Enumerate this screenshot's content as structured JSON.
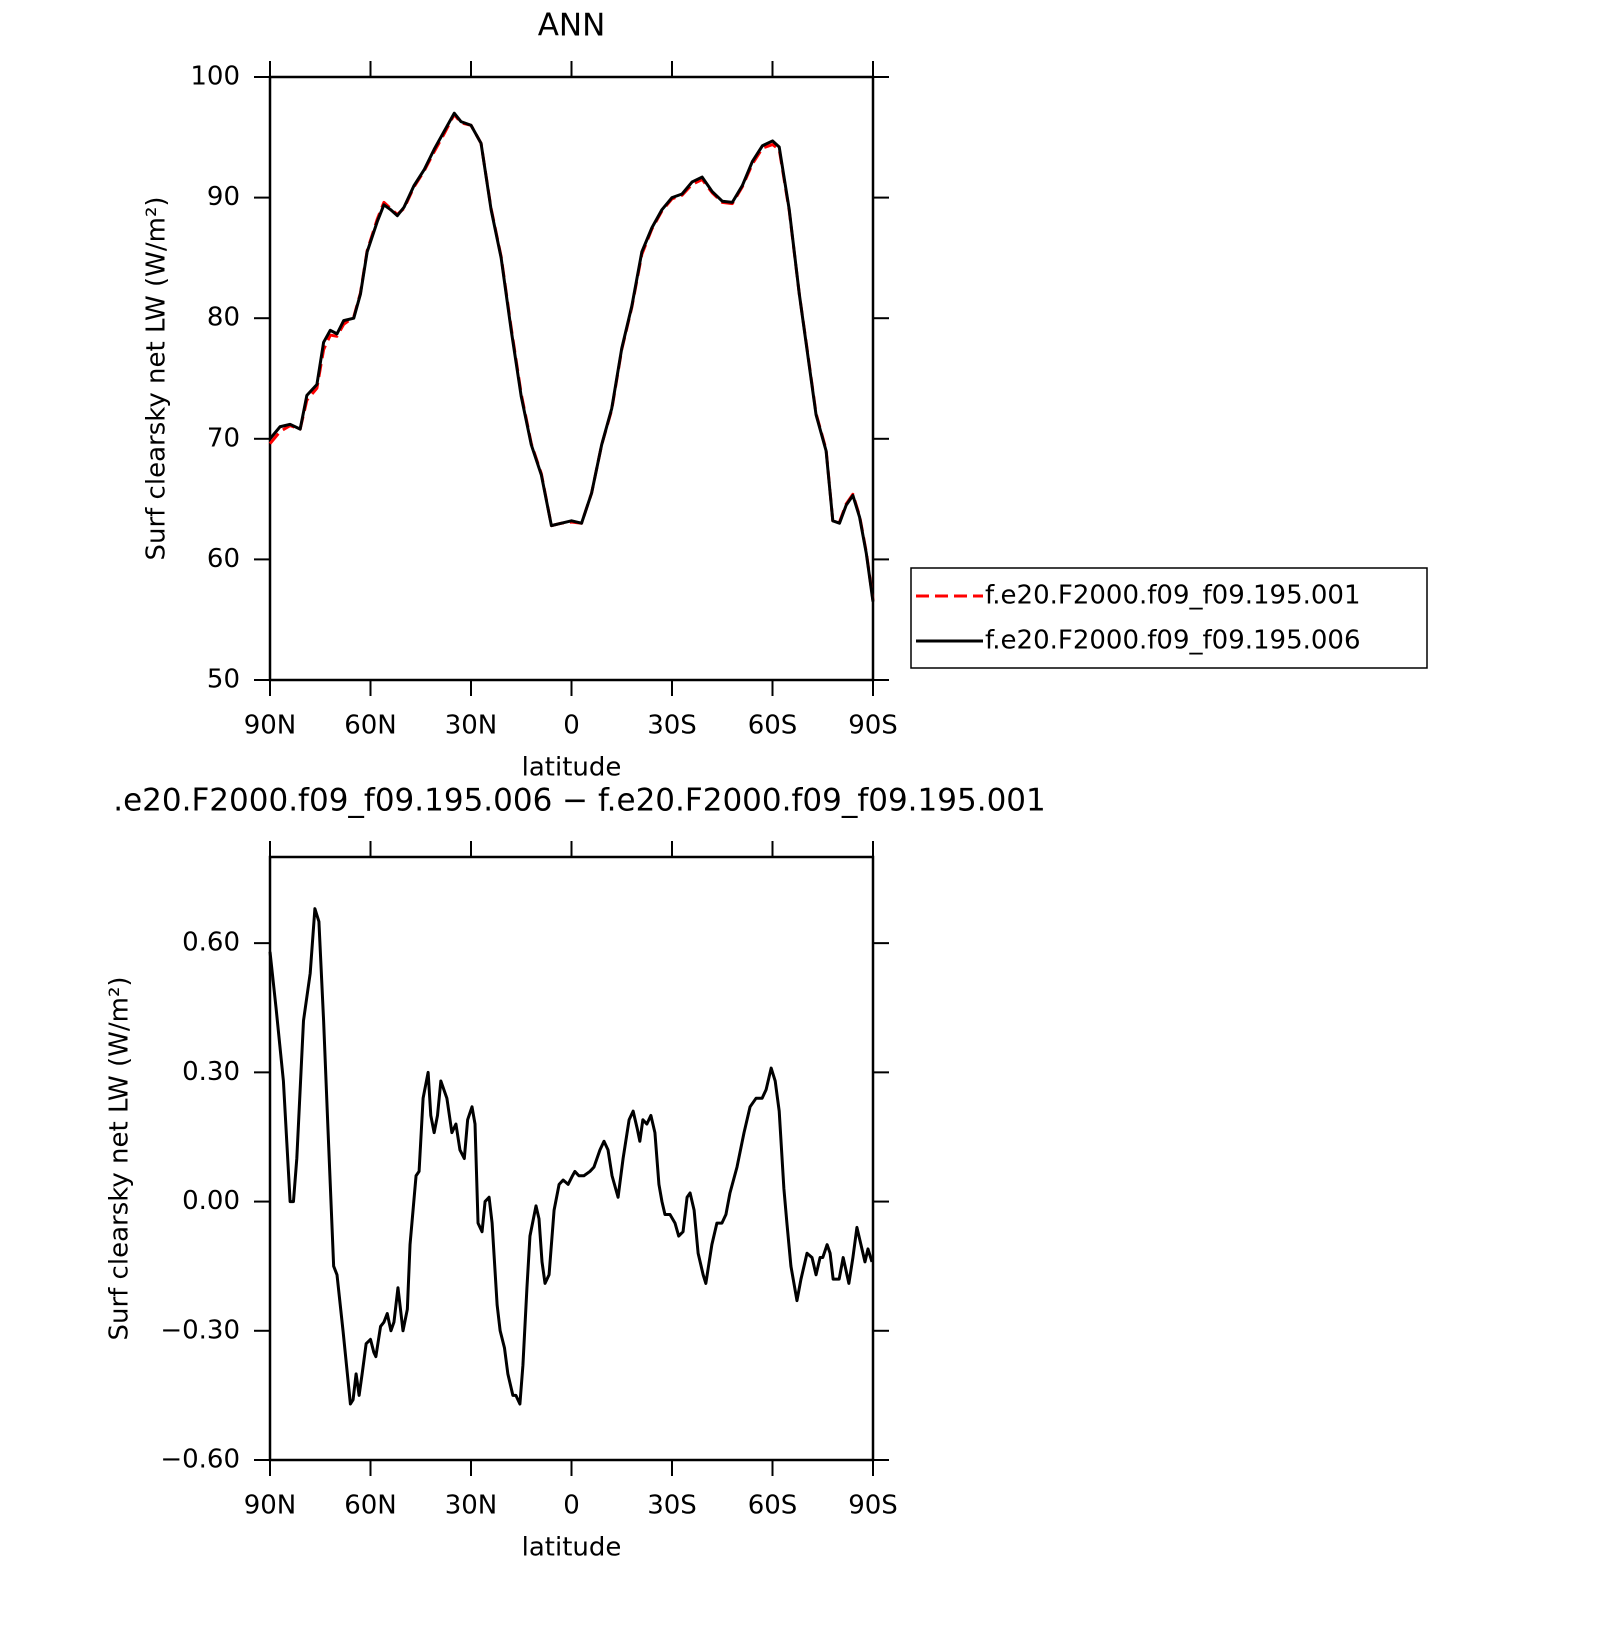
{
  "chart_data": [
    {
      "type": "line",
      "title": "ANN",
      "xlabel": "latitude",
      "ylabel": "Surf clearsky net LW (W/m²)",
      "xlim": [
        90,
        -90
      ],
      "xticks": [
        {
          "value": 90,
          "label": "90N"
        },
        {
          "value": 60,
          "label": "60N"
        },
        {
          "value": 30,
          "label": "30N"
        },
        0,
        {
          "value": -30,
          "label": "30S"
        },
        {
          "value": -60,
          "label": "60S"
        },
        {
          "value": -90,
          "label": "90S"
        }
      ],
      "ylim": [
        50,
        100
      ],
      "yticks": [
        50,
        60,
        70,
        80,
        90,
        100
      ],
      "legend": "right",
      "x": [
        90,
        87,
        84,
        81,
        79,
        76,
        74,
        72,
        70,
        68,
        65,
        63,
        61,
        58,
        56,
        54,
        52,
        50,
        47,
        44,
        41,
        38,
        35,
        33,
        30,
        27,
        24,
        21,
        18,
        15,
        12,
        9,
        6,
        3,
        0,
        -3,
        -6,
        -9,
        -12,
        -15,
        -18,
        -21,
        -24,
        -27,
        -30,
        -33,
        -36,
        -39,
        -42,
        -45,
        -48,
        -51,
        -54,
        -57,
        -60,
        -62,
        -65,
        -68,
        -70,
        -73,
        -76,
        -78,
        -80,
        -82,
        -84,
        -86,
        -88,
        -90
      ],
      "series": [
        {
          "name": "f.e20.F2000.f09_f09.195.001",
          "color": "#ff0000",
          "linestyle": "dashed",
          "values": [
            69.6,
            70.6,
            71.1,
            70.8,
            73.2,
            74.2,
            77.4,
            78.6,
            78.5,
            79.5,
            80.1,
            82.1,
            85.6,
            88.2,
            89.6,
            89.1,
            88.6,
            89.1,
            90.9,
            92.2,
            93.8,
            95.3,
            96.9,
            96.2,
            96,
            94.5,
            89.1,
            85.1,
            79.2,
            73.7,
            69.6,
            67.1,
            62.8,
            63,
            63.1,
            63,
            65.5,
            69.5,
            72.4,
            77.4,
            80.9,
            85.3,
            87.4,
            88.9,
            89.9,
            90.2,
            91.1,
            91.5,
            90.4,
            89.6,
            89.5,
            90.9,
            92.8,
            94.1,
            94.4,
            94,
            88.9,
            82,
            78.1,
            72.1,
            69.1,
            63.2,
            63.1,
            64.6,
            65.4,
            63.6,
            60.6,
            56.6
          ]
        },
        {
          "name": "f.e20.F2000.f09_f09.195.006",
          "color": "#000000",
          "linestyle": "solid",
          "values": [
            70,
            71,
            71.2,
            70.8,
            73.6,
            74.5,
            78,
            79,
            78.7,
            79.8,
            80,
            82,
            85.5,
            88,
            89.4,
            89,
            88.5,
            89.2,
            91,
            92.3,
            94,
            95.5,
            97,
            96.3,
            96,
            94.5,
            89,
            85,
            79,
            73.5,
            69.5,
            67,
            62.8,
            63,
            63.2,
            63,
            65.5,
            69.5,
            72.5,
            77.5,
            81,
            85.5,
            87.5,
            89,
            90,
            90.3,
            91.3,
            91.7,
            90.5,
            89.7,
            89.6,
            91,
            93,
            94.3,
            94.7,
            94.2,
            89,
            82,
            78,
            72,
            69,
            63.2,
            63,
            64.5,
            65.3,
            63.5,
            60.5,
            56.5
          ]
        }
      ]
    },
    {
      "type": "line",
      "title": ".e20.F2000.f09_f09.195.006 − f.e20.F2000.f09_f09.195.001",
      "xlabel": "latitude",
      "ylabel": "Surf clearsky net LW (W/m²)",
      "xlim": [
        90,
        -90
      ],
      "xticks": [
        {
          "value": 90,
          "label": "90N"
        },
        {
          "value": 60,
          "label": "60N"
        },
        {
          "value": 30,
          "label": "30N"
        },
        0,
        {
          "value": -30,
          "label": "30S"
        },
        {
          "value": -60,
          "label": "60S"
        },
        {
          "value": -90,
          "label": "90S"
        }
      ],
      "ylim": [
        -0.6,
        0.8
      ],
      "yticks": [
        {
          "value": -0.6,
          "label": "−0.60"
        },
        {
          "value": -0.3,
          "label": "−0.30"
        },
        {
          "value": 0,
          "label": "0.00"
        },
        {
          "value": 0.3,
          "label": "0.30"
        },
        {
          "value": 0.6,
          "label": "0.60"
        }
      ],
      "color": "#000000",
      "x": [
        90,
        88.2,
        86,
        84,
        83,
        82,
        80,
        78,
        76.6,
        75.4,
        74,
        72.7,
        71,
        70,
        68.2,
        66,
        65.2,
        64.3,
        63.4,
        62.5,
        61.3,
        60,
        59,
        58.4,
        57,
        56,
        55,
        53.9,
        53,
        51.8,
        50.3,
        49,
        48.2,
        47.3,
        46.4,
        45.5,
        44.3,
        42.8,
        42,
        41,
        40,
        39,
        37.2,
        35.7,
        34.5,
        33.3,
        32,
        31,
        29.7,
        28.8,
        27.9,
        26.7,
        25.8,
        24.6,
        23.7,
        22.2,
        21.3,
        20,
        19,
        17.5,
        16.6,
        15.4,
        14.5,
        13.3,
        12.4,
        10.6,
        9.7,
        8.8,
        7.9,
        6.7,
        5.2,
        3.7,
        2.5,
        1,
        -0.3,
        -1,
        -2.2,
        -3.7,
        -5.5,
        -6.7,
        -8.5,
        -9.7,
        -10.9,
        -12.1,
        -13.9,
        -15.4,
        -17.2,
        -18.4,
        -19.6,
        -20.4,
        -21.3,
        -22.5,
        -23.7,
        -24.9,
        -26.1,
        -27,
        -27.9,
        -29.4,
        -30.9,
        -32,
        -33.3,
        -34.5,
        -35.4,
        -36.6,
        -37.8,
        -39.3,
        -40.1,
        -41.9,
        -43.4,
        -44.9,
        -46.1,
        -47.3,
        -49.4,
        -51.5,
        -53.3,
        -55.1,
        -56.9,
        -58.1,
        -59.6,
        -60.8,
        -62,
        -63.4,
        -64.3,
        -65.5,
        -67.3,
        -68.5,
        -70.3,
        -71.8,
        -73,
        -74.2,
        -75,
        -76.3,
        -77.2,
        -78.1,
        -79.9,
        -81.1,
        -82.8,
        -84,
        -85.2,
        -86.4,
        -87.6,
        -88.5,
        -89.7
      ],
      "values": [
        0.58,
        0.45,
        0.28,
        0,
        0,
        0.1,
        0.42,
        0.53,
        0.68,
        0.65,
        0.42,
        0.17,
        -0.15,
        -0.17,
        -0.3,
        -0.47,
        -0.46,
        -0.4,
        -0.45,
        -0.4,
        -0.33,
        -0.32,
        -0.35,
        -0.36,
        -0.29,
        -0.28,
        -0.26,
        -0.3,
        -0.28,
        -0.2,
        -0.3,
        -0.25,
        -0.1,
        -0.02,
        0.06,
        0.07,
        0.24,
        0.3,
        0.2,
        0.16,
        0.2,
        0.28,
        0.24,
        0.16,
        0.18,
        0.12,
        0.1,
        0.19,
        0.22,
        0.18,
        -0.05,
        -0.07,
        0,
        0.01,
        -0.05,
        -0.24,
        -0.3,
        -0.34,
        -0.4,
        -0.45,
        -0.45,
        -0.47,
        -0.38,
        -0.2,
        -0.08,
        -0.01,
        -0.04,
        -0.14,
        -0.19,
        -0.17,
        -0.02,
        0.04,
        0.05,
        0.04,
        0.06,
        0.07,
        0.06,
        0.06,
        0.07,
        0.08,
        0.12,
        0.14,
        0.12,
        0.06,
        0.01,
        0.1,
        0.19,
        0.21,
        0.17,
        0.14,
        0.19,
        0.18,
        0.2,
        0.16,
        0.04,
        0,
        -0.03,
        -0.03,
        -0.05,
        -0.08,
        -0.07,
        0.01,
        0.02,
        -0.02,
        -0.12,
        -0.17,
        -0.19,
        -0.1,
        -0.05,
        -0.05,
        -0.03,
        0.02,
        0.08,
        0.16,
        0.22,
        0.24,
        0.24,
        0.26,
        0.31,
        0.28,
        0.21,
        0.03,
        -0.05,
        -0.15,
        -0.23,
        -0.18,
        -0.12,
        -0.13,
        -0.17,
        -0.13,
        -0.13,
        -0.1,
        -0.12,
        -0.18,
        -0.18,
        -0.13,
        -0.19,
        -0.13,
        -0.06,
        -0.1,
        -0.14,
        -0.11,
        -0.14
      ]
    }
  ]
}
